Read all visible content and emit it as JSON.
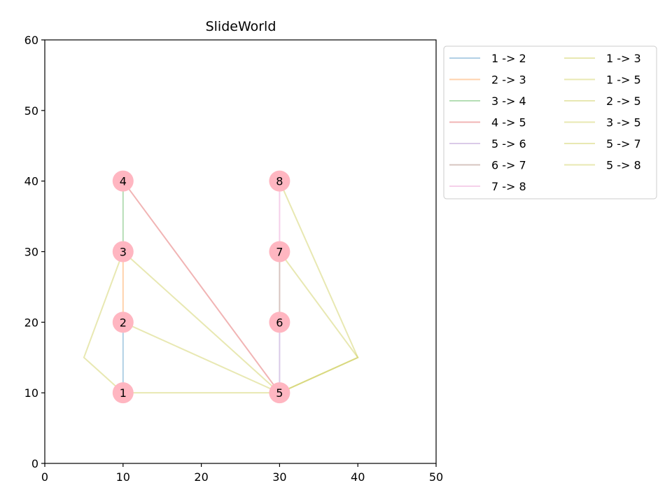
{
  "chart_data": {
    "type": "network",
    "title": "SlideWorld",
    "xlabel": "",
    "ylabel": "",
    "xlim": [
      0,
      50
    ],
    "ylim": [
      0,
      60
    ],
    "xticks": [
      "0",
      "10",
      "20",
      "30",
      "40",
      "50"
    ],
    "yticks": [
      "0",
      "10",
      "20",
      "30",
      "40",
      "50",
      "60"
    ],
    "grid": false,
    "legend_placement": "outside-top-right",
    "node_color": "#ffb6c1",
    "nodes": [
      {
        "label": "1",
        "x": 10,
        "y": 10
      },
      {
        "label": "2",
        "x": 10,
        "y": 20
      },
      {
        "label": "3",
        "x": 10,
        "y": 30
      },
      {
        "label": "4",
        "x": 10,
        "y": 40
      },
      {
        "label": "5",
        "x": 30,
        "y": 10
      },
      {
        "label": "6",
        "x": 30,
        "y": 20
      },
      {
        "label": "7",
        "x": 30,
        "y": 30
      },
      {
        "label": "8",
        "x": 30,
        "y": 40
      }
    ],
    "edges": [
      {
        "name": "1 -> 2",
        "color": "#1f77b4",
        "points": [
          [
            10,
            10
          ],
          [
            10,
            20
          ]
        ]
      },
      {
        "name": "2 -> 3",
        "color": "#ff7f0e",
        "points": [
          [
            10,
            20
          ],
          [
            10,
            30
          ]
        ]
      },
      {
        "name": "3 -> 4",
        "color": "#2ca02c",
        "points": [
          [
            10,
            30
          ],
          [
            10,
            40
          ]
        ]
      },
      {
        "name": "4 -> 5",
        "color": "#d62728",
        "points": [
          [
            10,
            40
          ],
          [
            30,
            10
          ]
        ]
      },
      {
        "name": "5 -> 6",
        "color": "#9467bd",
        "points": [
          [
            30,
            10
          ],
          [
            30,
            20
          ]
        ]
      },
      {
        "name": "6 -> 7",
        "color": "#8c564b",
        "points": [
          [
            30,
            20
          ],
          [
            30,
            30
          ]
        ]
      },
      {
        "name": "7 -> 8",
        "color": "#e377c2",
        "points": [
          [
            30,
            30
          ],
          [
            30,
            40
          ]
        ]
      },
      {
        "name": "1 -> 3",
        "color": "#bcbd22",
        "points": [
          [
            10,
            10
          ],
          [
            5,
            15
          ],
          [
            10,
            30
          ]
        ]
      },
      {
        "name": "1 -> 5",
        "color": "#bcbd22",
        "points": [
          [
            10,
            10
          ],
          [
            30,
            10
          ]
        ]
      },
      {
        "name": "2 -> 5",
        "color": "#bcbd22",
        "points": [
          [
            10,
            20
          ],
          [
            30,
            10
          ]
        ]
      },
      {
        "name": "3 -> 5",
        "color": "#bcbd22",
        "points": [
          [
            10,
            30
          ],
          [
            30,
            10
          ]
        ]
      },
      {
        "name": "5 -> 7",
        "color": "#bcbd22",
        "points": [
          [
            30,
            10
          ],
          [
            40,
            15
          ],
          [
            30,
            30
          ]
        ]
      },
      {
        "name": "5 -> 8",
        "color": "#bcbd22",
        "points": [
          [
            30,
            10
          ],
          [
            40,
            15
          ],
          [
            30,
            40
          ]
        ]
      }
    ]
  }
}
